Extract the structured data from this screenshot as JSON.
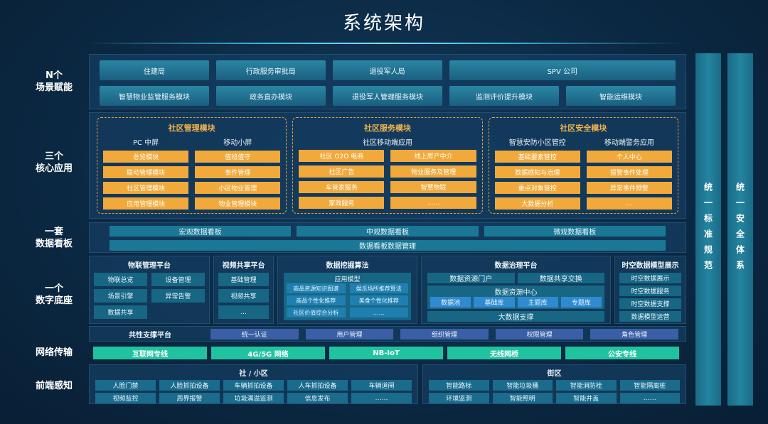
{
  "title": "系统架构",
  "labels": [
    "N个\n场景赋能",
    "三个\n核心应用",
    "一套\n数据看板",
    "一个\n数字底座",
    "网络传输",
    "前端感知"
  ],
  "scenes": {
    "row1": [
      "住建局",
      "行政服务审批局",
      "退役军人局",
      "SPV  公司"
    ],
    "row2": [
      "智慧物业监管服务模块",
      "政务直办模块",
      "退役军人管理服务模块",
      "监测评价提升模块",
      "智能运维模块"
    ]
  },
  "core": [
    {
      "title": "社区管理模块",
      "cols": [
        {
          "sub": "PC 中屏",
          "items": [
            "总览模块",
            "联动管理模块",
            "社区管理模块",
            "应用管理模块"
          ]
        },
        {
          "sub": "移动小屏",
          "items": [
            "值班值守",
            "事件管理",
            "小区物业管理",
            "物业管理模块"
          ]
        }
      ]
    },
    {
      "title": "社区服务模块",
      "sub": "社区移动端应用",
      "items": [
        "社区  O2O  电商",
        "线上房产中介",
        "社区广告",
        "物业服务及管理",
        "车管家服务",
        "智慧物联",
        "家政服务",
        "……"
      ]
    },
    {
      "title": "社区安全模块",
      "cols": [
        {
          "sub": "智慧安防小区管控",
          "items": [
            "基础要素管控",
            "数据感知与治理",
            "重点对象管控",
            "大数据分析"
          ]
        },
        {
          "sub": "移动端警务应用",
          "items": [
            "个人中心",
            "报警事件处理",
            "异常事件预警",
            "…"
          ]
        }
      ]
    }
  ],
  "dashboard": {
    "row1": [
      "宏观数据看板",
      "中观数据看板",
      "微观数据看板"
    ],
    "row2": "数据看板数据管理"
  },
  "base": {
    "iot": {
      "title": "物联管理平台",
      "items": [
        "物联总览",
        "设备管理",
        "场景引擎",
        "异常告警",
        "数据共享"
      ]
    },
    "video": {
      "title": "视频共享平台",
      "items": [
        "基础管理",
        "视频共享",
        "..."
      ]
    },
    "mining": {
      "title": "数据挖掘算法",
      "model": "应用模型",
      "items": [
        "商品资源知识图谱",
        "娱乐场所推荐算法",
        "商品个性化推荐",
        "美食个性化推荐",
        "社区价值综合分析",
        "……"
      ]
    },
    "gov": {
      "title": "数据治理平台",
      "top": [
        "数据资源门户",
        "数据共享交换"
      ],
      "center": "数据资源中心",
      "libs": [
        "数据池",
        "基础库",
        "主题库",
        "专题库"
      ],
      "bottom": "大数据支撑"
    },
    "st": {
      "title": "时空数据模型展示",
      "items": [
        "时空数据展示",
        "时空数据服务",
        "时空数据支撑",
        "数据模型运营"
      ]
    }
  },
  "common": {
    "title": "共性支撑平台",
    "items": [
      "统一认证",
      "用户管理",
      "组织管理",
      "权限管理",
      "角色管理"
    ]
  },
  "network": [
    "互联网专线",
    "4G/5G  网络",
    "NB-IoT",
    "无线网桥",
    "公安专线"
  ],
  "front": {
    "community": {
      "title": "社 / 小区",
      "items": [
        "人脸门禁",
        "人脸抓拍设备",
        "车辆抓拍设备",
        "人车抓拍设备",
        "车辆道闸",
        "视频监控",
        "周界报警",
        "垃圾满溢监测",
        "信息发布",
        "……"
      ]
    },
    "street": {
      "title": "街区",
      "items": [
        "智能路标",
        "智能垃圾桶",
        "智能消防栓",
        "智能隔离桩",
        "环境监测",
        "智能照明",
        "智能井盖",
        "……"
      ]
    }
  },
  "side": [
    "统一标准规范",
    "统一安全体系"
  ],
  "colors": {
    "accent_orange": "#f0a93a",
    "network_green": "#1fc39f",
    "background": "#0b2842"
  }
}
